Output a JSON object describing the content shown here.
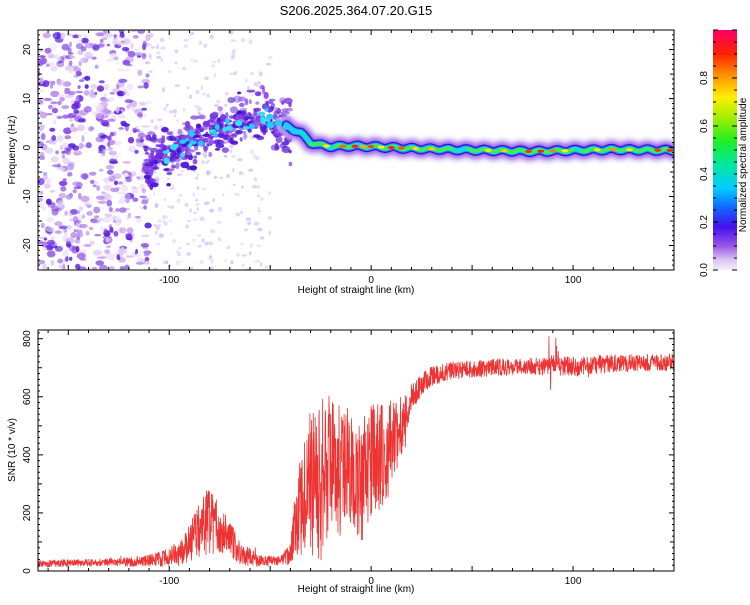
{
  "title": "S206.2025.364.07.20.G15",
  "colorbar": {
    "label": "Normalized spectral amplitude",
    "ticks": [
      0.0,
      0.2,
      0.4,
      0.6,
      0.8
    ],
    "range": [
      0,
      1
    ]
  },
  "chart_data": [
    {
      "type": "heatmap",
      "xlabel": "Height of straight line (km)",
      "ylabel": "Frequency (Hz)",
      "xlim": [
        -165,
        150
      ],
      "ylim": [
        -25,
        24
      ],
      "xticks": [
        -100,
        0,
        100
      ],
      "yticks": [
        -20,
        -10,
        0,
        10,
        20
      ],
      "ridge": {
        "x": [
          -110,
          -100,
          -90,
          -80,
          -70,
          -60,
          -50,
          -45,
          -40,
          -35,
          -30,
          -25,
          -20,
          -10,
          0,
          20,
          50,
          80,
          100,
          120,
          150
        ],
        "y": [
          -3,
          -1,
          1,
          3,
          4.5,
          6,
          6,
          5,
          4,
          3,
          1,
          0.5,
          0.2,
          0.3,
          0.2,
          -0.2,
          -0.5,
          -0.8,
          -0.6,
          -0.4,
          -0.6
        ]
      },
      "noise_region_x": [
        -165,
        -110
      ],
      "noise_scatter_x": [
        -110,
        -50
      ]
    },
    {
      "type": "line",
      "xlabel": "Height of straight line (km)",
      "ylabel": "SNR (10 * v/v)",
      "xlim": [
        -165,
        150
      ],
      "ylim": [
        0,
        830
      ],
      "xticks": [
        -100,
        0,
        100
      ],
      "yticks": [
        0,
        200,
        400,
        600,
        800
      ],
      "series": [
        {
          "name": "SNR",
          "color": "#ee3333",
          "envelope_x": [
            -165,
            -130,
            -110,
            -95,
            -88,
            -80,
            -75,
            -70,
            -65,
            -55,
            -45,
            -40,
            -35,
            -30,
            -25,
            -20,
            -15,
            -10,
            -5,
            0,
            5,
            10,
            15,
            20,
            25,
            30,
            40,
            60,
            80,
            100,
            120,
            150
          ],
          "envelope_y": [
            25,
            30,
            35,
            55,
            110,
            180,
            140,
            115,
            60,
            35,
            35,
            60,
            220,
            310,
            330,
            380,
            340,
            370,
            300,
            390,
            380,
            440,
            500,
            600,
            640,
            670,
            690,
            700,
            705,
            705,
            715,
            720
          ],
          "amplitude": [
            12,
            12,
            20,
            40,
            80,
            120,
            80,
            60,
            40,
            20,
            15,
            40,
            200,
            250,
            300,
            220,
            230,
            200,
            220,
            200,
            210,
            150,
            100,
            50,
            40,
            35,
            30,
            30,
            30,
            35,
            30,
            30
          ]
        }
      ]
    }
  ]
}
